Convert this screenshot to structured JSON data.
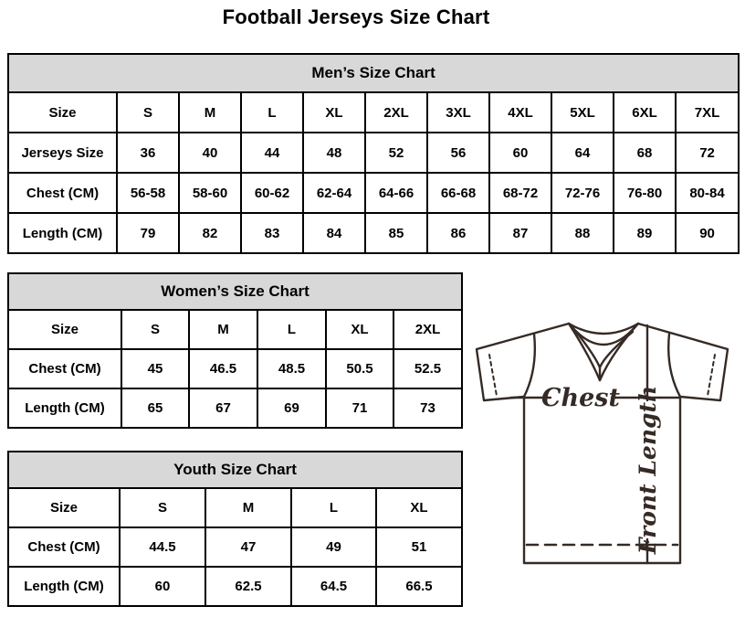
{
  "page": {
    "title": "Football Jerseys Size Chart"
  },
  "colors": {
    "table_header_bg": "#d8d8d8",
    "table_border": "#000000",
    "diagram_line": "#352a25",
    "text": "#000000"
  },
  "tables": {
    "men": {
      "title": "Men’s Size Chart",
      "rows": [
        [
          "Size",
          "S",
          "M",
          "L",
          "XL",
          "2XL",
          "3XL",
          "4XL",
          "5XL",
          "6XL",
          "7XL"
        ],
        [
          "Jerseys Size",
          "36",
          "40",
          "44",
          "48",
          "52",
          "56",
          "60",
          "64",
          "68",
          "72"
        ],
        [
          "Chest (CM)",
          "56-58",
          "58-60",
          "60-62",
          "62-64",
          "64-66",
          "66-68",
          "68-72",
          "72-76",
          "76-80",
          "80-84"
        ],
        [
          "Length (CM)",
          "79",
          "82",
          "83",
          "84",
          "85",
          "86",
          "87",
          "88",
          "89",
          "90"
        ]
      ]
    },
    "women": {
      "title": "Women’s Size Chart",
      "rows": [
        [
          "Size",
          "S",
          "M",
          "L",
          "XL",
          "2XL"
        ],
        [
          "Chest (CM)",
          "45",
          "46.5",
          "48.5",
          "50.5",
          "52.5"
        ],
        [
          "Length (CM)",
          "65",
          "67",
          "69",
          "71",
          "73"
        ]
      ]
    },
    "youth": {
      "title": "Youth Size Chart",
      "rows": [
        [
          "Size",
          "S",
          "M",
          "L",
          "XL"
        ],
        [
          "Chest (CM)",
          "44.5",
          "47",
          "49",
          "51"
        ],
        [
          "Length (CM)",
          "60",
          "62.5",
          "64.5",
          "66.5"
        ]
      ]
    }
  },
  "diagram": {
    "chest_label": "Chest",
    "front_length_label": "Front Length"
  }
}
